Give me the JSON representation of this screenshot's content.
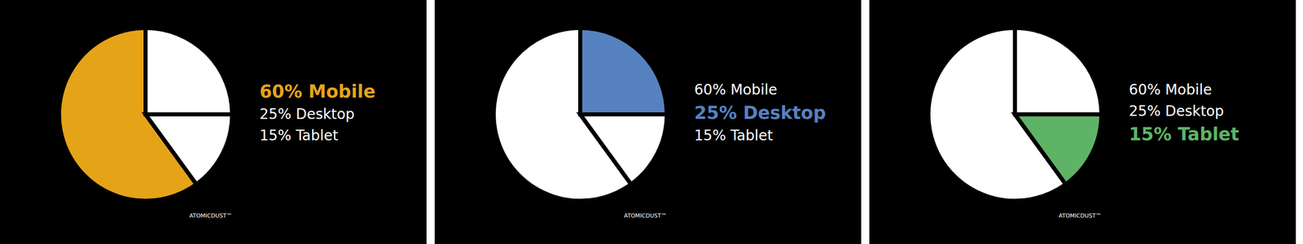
{
  "chart_data": [
    {
      "type": "pie",
      "categories": [
        "60% Mobile",
        "25% Desktop",
        "15% Tablet"
      ],
      "values": [
        60,
        25,
        15
      ],
      "colors": [
        "#e5a318",
        "#ffffff",
        "#ffffff"
      ],
      "annotation": "ATOMICDUST™"
    },
    {
      "type": "pie",
      "categories": [
        "60% Mobile",
        "25% Desktop",
        "15% Tablet"
      ],
      "values": [
        60,
        25,
        15
      ],
      "colors": [
        "#ffffff",
        "#5681c0",
        "#ffffff"
      ],
      "annotation": "ATOMICDUST™"
    },
    {
      "type": "pie",
      "categories": [
        "60% Mobile",
        "25% Desktop",
        "15% Tablet"
      ],
      "values": [
        60,
        25,
        15
      ],
      "colors": [
        "#ffffff",
        "#ffffff",
        "#5fb366"
      ],
      "annotation": "ATOMICDUST™"
    }
  ]
}
